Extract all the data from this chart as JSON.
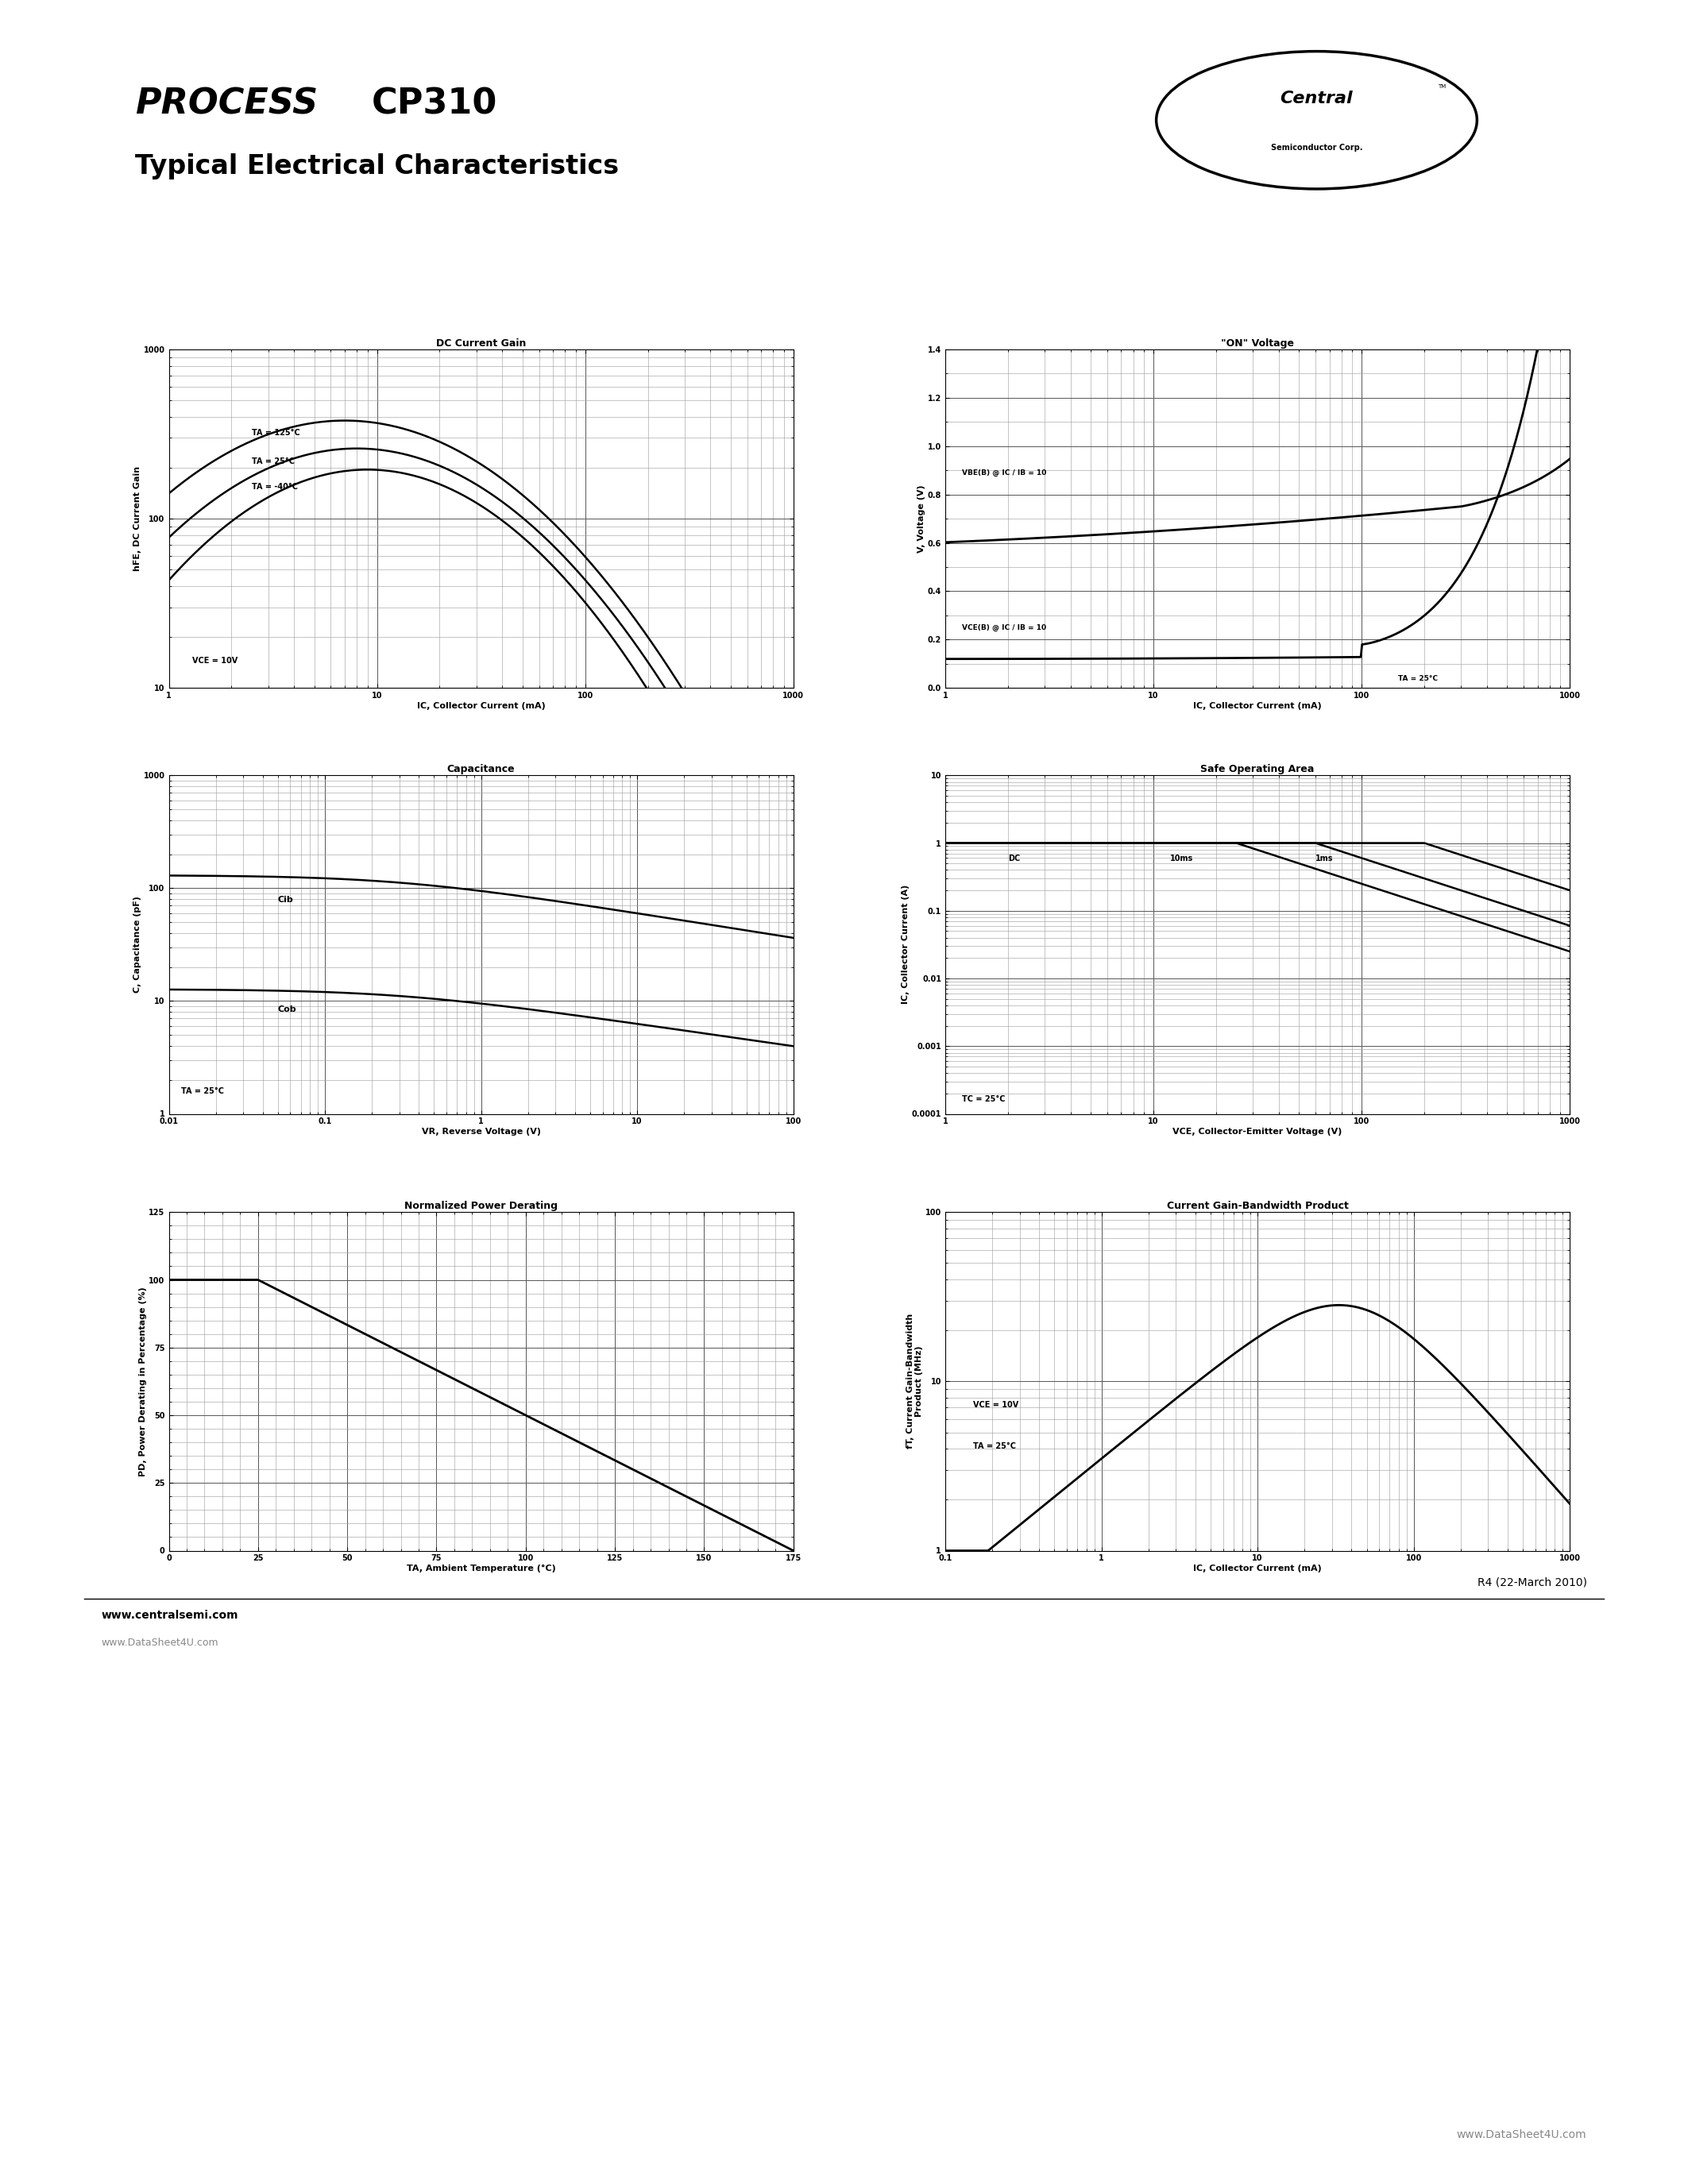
{
  "page_title1": "PROCESS",
  "page_title2": "  CP310",
  "page_subtitle": "Typical Electrical Characteristics",
  "bg_color": "#ffffff",
  "text_color": "#000000",
  "grid_color": "#555555",
  "minor_grid_color": "#999999",
  "plot_bg": "#ffffff",
  "footer_left": "www.centralsemi.com",
  "footer_watermark": "www.DataSheet4U.com",
  "revision": "R4 (22-March 2010)",
  "bottom_right_watermark": "www.DataSheet4U.com",
  "plot1_title": "DC Current Gain",
  "plot1_xlabel": "IC, Collector Current (mA)",
  "plot1_ylabel": "hFE, DC Current Gain",
  "plot1_xlim": [
    1,
    1000
  ],
  "plot1_ylim": [
    10,
    1000
  ],
  "plot1_xticks": [
    1,
    10,
    100,
    1000
  ],
  "plot1_yticks": [
    10,
    100,
    1000
  ],
  "plot1_ann1": "TA = 125°C",
  "plot1_ann2": "TA = 25°C",
  "plot1_ann3": "TA = -40°C",
  "plot1_ann4": "VCE = 10V",
  "plot2_title": "\"ON\" Voltage",
  "plot2_xlabel": "IC, Collector Current (mA)",
  "plot2_ylabel": "V, Voltage (V)",
  "plot2_xlim": [
    1,
    1000
  ],
  "plot2_ylim": [
    0.0,
    1.4
  ],
  "plot2_xticks": [
    1,
    10,
    100,
    1000
  ],
  "plot2_yticks": [
    0.0,
    0.2,
    0.4,
    0.6,
    0.8,
    1.0,
    1.2,
    1.4
  ],
  "plot2_ann1": "VBE(B) @ IC / IB = 10",
  "plot2_ann2": "VCE(B) @ IC / IB = 10",
  "plot2_ann3": "TA = 25°C",
  "plot3_title": "Capacitance",
  "plot3_xlabel": "VR, Reverse Voltage (V)",
  "plot3_ylabel": "C, Capacitance (pF)",
  "plot3_xlim": [
    0.01,
    100
  ],
  "plot3_ylim": [
    1,
    1000
  ],
  "plot3_xticks": [
    0.01,
    0.1,
    1,
    10,
    100
  ],
  "plot3_yticks": [
    1,
    10,
    100,
    1000
  ],
  "plot3_ann1": "Cib",
  "plot3_ann2": "Cob",
  "plot3_ann3": "TA = 25°C",
  "plot4_title": "Safe Operating Area",
  "plot4_xlabel": "VCE, Collector-Emitter Voltage (V)",
  "plot4_ylabel": "IC, Collector Current (A)",
  "plot4_xlim": [
    1,
    1000
  ],
  "plot4_ylim": [
    0.0001,
    10
  ],
  "plot4_xticks": [
    1,
    10,
    100,
    1000
  ],
  "plot4_yticks": [
    0.0001,
    0.001,
    0.01,
    0.1,
    1,
    10
  ],
  "plot4_ann1": "DC",
  "plot4_ann2": "10ms",
  "plot4_ann3": "1ms",
  "plot4_ann4": "TC = 25°C",
  "plot5_title": "Normalized Power Derating",
  "plot5_xlabel": "TA, Ambient Temperature (°C)",
  "plot5_ylabel": "PD, Power Derating in Percentage (%)",
  "plot5_xlim": [
    0,
    175
  ],
  "plot5_ylim": [
    0,
    125
  ],
  "plot5_xticks": [
    0,
    25,
    50,
    75,
    100,
    125,
    150,
    175
  ],
  "plot5_yticks": [
    0,
    25,
    50,
    75,
    100,
    125
  ],
  "plot6_title": "Current Gain-Bandwidth Product",
  "plot6_xlabel": "IC, Collector Current (mA)",
  "plot6_ylabel": "fT, Current Gain-Bandwidth\nProduct (MHz)",
  "plot6_xlim": [
    0.1,
    1000
  ],
  "plot6_ylim": [
    1,
    100
  ],
  "plot6_xticks": [
    0.1,
    1,
    10,
    100,
    1000
  ],
  "plot6_yticks": [
    1,
    10,
    100
  ],
  "plot6_ann1": "VCE = 10V",
  "plot6_ann2": "TA = 25°C"
}
